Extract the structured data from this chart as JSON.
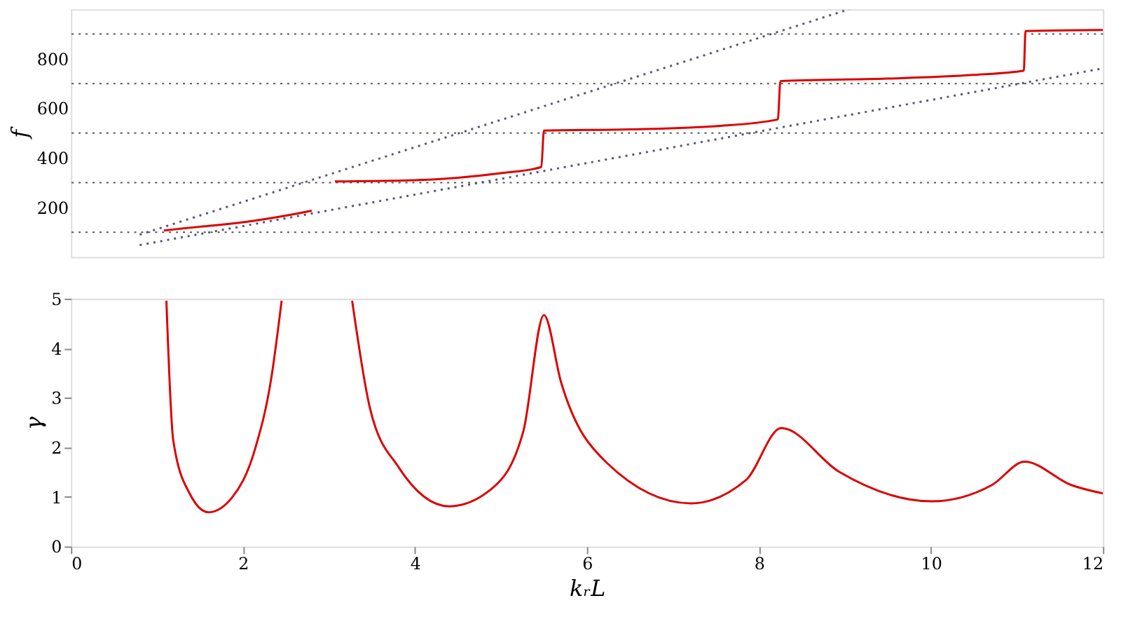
{
  "chart_data": [
    {
      "type": "line",
      "ylabel": "f",
      "xlim": [
        0,
        12
      ],
      "xticks": [
        0,
        2,
        4,
        6,
        8,
        10,
        12
      ],
      "ylim": [
        0,
        1000
      ],
      "yticks": [
        200,
        400,
        600,
        800
      ],
      "tick_labels": "y",
      "grid": false,
      "marker": "none",
      "series": [
        {
          "color": "#dd0000",
          "line_style": "solid",
          "x": [
            1.08,
            1.5,
            2.0,
            2.5,
            2.8
          ],
          "values": [
            107,
            122,
            140,
            167,
            187
          ]
        },
        {
          "color": "#dd0000",
          "line_style": "solid",
          "x": [
            3.07,
            4.0,
            4.5,
            5.0,
            5.47,
            5.5,
            6.5,
            7.5,
            8.22,
            8.25,
            9.5,
            10.5,
            11.08,
            11.1,
            12.0
          ],
          "values": [
            305,
            310,
            320,
            338,
            363,
            510,
            515,
            528,
            555,
            710,
            720,
            735,
            752,
            912,
            916
          ]
        },
        {
          "color": "#555577",
          "line_style": "dotted",
          "x": [
            0.8,
            9.05
          ],
          "values": [
            90,
            1000
          ]
        },
        {
          "color": "#555577",
          "line_style": "dotted",
          "x": [
            0.8,
            12.0
          ],
          "values": [
            48,
            761
          ]
        }
      ],
      "ref_lines": [
        {
          "axis": "y",
          "value": 100,
          "color": "#555555",
          "line_style": "dotted"
        },
        {
          "axis": "y",
          "value": 300,
          "color": "#555555",
          "line_style": "dotted"
        },
        {
          "axis": "y",
          "value": 500,
          "color": "#555555",
          "line_style": "dotted"
        },
        {
          "axis": "y",
          "value": 700,
          "color": "#555555",
          "line_style": "dotted"
        },
        {
          "axis": "y",
          "value": 900,
          "color": "#555555",
          "line_style": "dotted"
        }
      ]
    },
    {
      "type": "line",
      "xlabel": "kᵣL",
      "ylabel": "γ",
      "xlim": [
        0,
        12
      ],
      "xticks": [
        0,
        2,
        4,
        6,
        8,
        10,
        12
      ],
      "ylim": [
        0,
        5
      ],
      "yticks": [
        0,
        1,
        2,
        3,
        4,
        5
      ],
      "grid": false,
      "marker": "none",
      "series": [
        {
          "color": "#dd0000",
          "line_style": "solid",
          "x": [
            1.11,
            1.19,
            1.38,
            1.6,
            1.87,
            2.14,
            2.33,
            2.45,
            2.9,
            3.27,
            3.48,
            3.81,
            4.4,
            4.89,
            5.26,
            5.5,
            5.7,
            6.23,
            7.21,
            7.85,
            8.26,
            8.93,
            10.01,
            10.71,
            11.09,
            11.63,
            12.0
          ],
          "values": [
            4.96,
            2.14,
            1.07,
            0.69,
            0.98,
            1.96,
            3.4,
            4.96,
            null,
            4.96,
            2.77,
            1.6,
            0.81,
            1.16,
            2.32,
            4.67,
            3.31,
            1.69,
            0.87,
            1.34,
            2.39,
            1.51,
            0.91,
            1.24,
            1.71,
            1.24,
            1.07
          ]
        }
      ]
    }
  ]
}
